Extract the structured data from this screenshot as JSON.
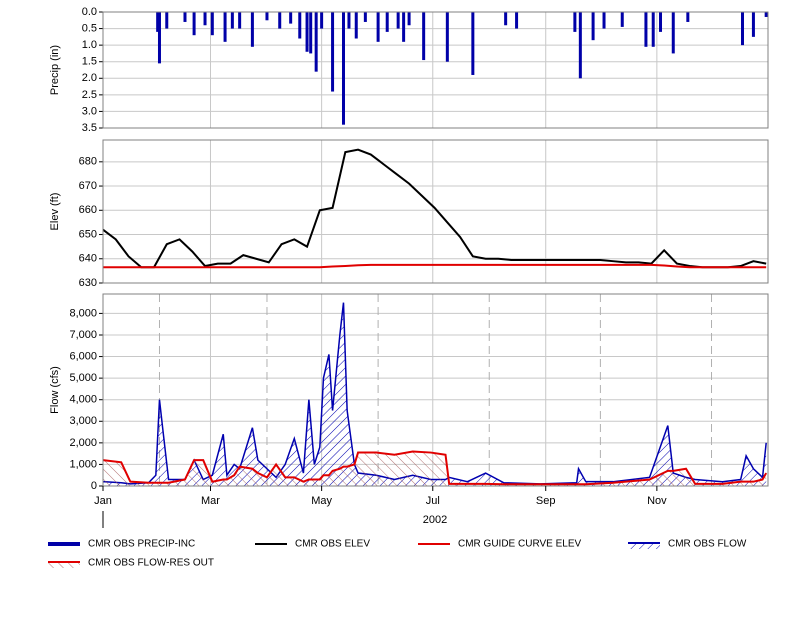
{
  "chart_data": [
    {
      "type": "bar",
      "ylabel": "Precip (in)",
      "y_inverted": true,
      "color": "#0000a8",
      "ylim": [
        0,
        3.5
      ],
      "yticks": [
        {
          "value": 0,
          "label": "0.0"
        },
        0.5,
        {
          "value": 1,
          "label": "1.0"
        },
        1.5,
        {
          "value": 2,
          "label": "2.0"
        },
        2.5,
        {
          "value": 3,
          "label": "3.0"
        },
        3.5
      ],
      "series": [
        {
          "name": "CMR OBS PRECIP-INC",
          "color": "#0000a8",
          "x": [
            30,
            31,
            35,
            45,
            50,
            56,
            60,
            67,
            71,
            75,
            82,
            90,
            97,
            103,
            108,
            112,
            114,
            117,
            120,
            126,
            132,
            135,
            139,
            144,
            151,
            156,
            162,
            165,
            168,
            176,
            189,
            203,
            221,
            227,
            259,
            262,
            269,
            275,
            285,
            298,
            302,
            306,
            313,
            321,
            351,
            357,
            364
          ],
          "values": [
            0.6,
            1.55,
            0.5,
            0.3,
            0.7,
            0.4,
            0.7,
            0.9,
            0.5,
            0.5,
            1.05,
            0.25,
            0.5,
            0.35,
            0.8,
            1.2,
            1.25,
            1.8,
            0.5,
            2.4,
            3.4,
            0.5,
            0.8,
            0.3,
            0.9,
            0.6,
            0.5,
            0.9,
            0.4,
            1.45,
            1.5,
            1.9,
            0.4,
            0.5,
            0.6,
            2.0,
            0.85,
            0.5,
            0.45,
            1.05,
            1.05,
            0.6,
            1.25,
            0.3,
            1.0,
            0.75,
            0.15
          ]
        }
      ]
    },
    {
      "type": "line",
      "ylabel": "Elev (ft)",
      "ylim": [
        630,
        689
      ],
      "yticks": [
        630,
        640,
        650,
        660,
        670,
        680
      ],
      "x": [
        0,
        7,
        14,
        21,
        28,
        35,
        42,
        49,
        56,
        63,
        70,
        77,
        84,
        91,
        98,
        105,
        112,
        119,
        126,
        133,
        140,
        147,
        154,
        161,
        168,
        175,
        182,
        189,
        196,
        203,
        210,
        217,
        224,
        231,
        238,
        245,
        252,
        259,
        266,
        273,
        280,
        287,
        294,
        301,
        308,
        315,
        322,
        329,
        336,
        343,
        350,
        357,
        364
      ],
      "series": [
        {
          "name": "CMR OBS ELEV",
          "color": "#000000",
          "values": [
            652,
            648,
            641,
            636.5,
            636.5,
            646,
            648,
            643,
            637,
            638,
            638,
            641.5,
            640,
            638.5,
            646,
            648,
            645,
            660,
            661,
            684,
            685,
            683,
            679,
            675,
            671,
            666,
            661,
            655,
            649,
            641,
            640,
            640,
            639.5,
            639.5,
            639.5,
            639.5,
            639.5,
            639.5,
            639.5,
            639.5,
            639,
            638.5,
            638.5,
            638,
            643.5,
            638,
            637,
            636.5,
            636.5,
            636.5,
            637,
            639,
            638
          ]
        },
        {
          "name": "CMR GUIDE CURVE ELEV",
          "color": "#e00000",
          "values": [
            636.5,
            636.5,
            636.5,
            636.5,
            636.5,
            636.5,
            636.5,
            636.5,
            636.5,
            636.5,
            636.5,
            636.5,
            636.5,
            636.5,
            636.5,
            636.5,
            636.5,
            636.5,
            636.8,
            637,
            637.3,
            637.5,
            637.5,
            637.5,
            637.5,
            637.5,
            637.5,
            637.5,
            637.5,
            637.5,
            637.5,
            637.5,
            637.5,
            637.5,
            637.5,
            637.5,
            637.5,
            637.5,
            637.5,
            637.5,
            637.5,
            637.5,
            637.5,
            637.5,
            637.2,
            636.8,
            636.5,
            636.5,
            636.5,
            636.5,
            636.5,
            636.5,
            636.5
          ]
        }
      ]
    },
    {
      "type": "line",
      "ylabel": "Flow (cfs)",
      "hatch": true,
      "ylim": [
        0,
        8900
      ],
      "yticks": [
        0,
        {
          "value": 1000,
          "label": "1,000"
        },
        {
          "value": 2000,
          "label": "2,000"
        },
        {
          "value": 3000,
          "label": "3,000"
        },
        {
          "value": 4000,
          "label": "4,000"
        },
        {
          "value": 5000,
          "label": "5,000"
        },
        {
          "value": 6000,
          "label": "6,000"
        },
        {
          "value": 7000,
          "label": "7,000"
        },
        {
          "value": 8000,
          "label": "8,000"
        }
      ],
      "xlim": [
        0,
        365
      ],
      "xlabel": "2002",
      "xticks": [
        {
          "value": 0,
          "label": "Jan"
        },
        {
          "value": 59,
          "label": "Mar"
        },
        {
          "value": 120,
          "label": "May"
        },
        {
          "value": 181,
          "label": "Jul"
        },
        {
          "value": 243,
          "label": "Sep"
        },
        {
          "value": 304,
          "label": "Nov"
        }
      ],
      "xminor": [
        31,
        90,
        151,
        212,
        273,
        334
      ],
      "x": [
        0,
        10,
        15,
        25,
        29,
        31,
        33,
        36,
        45,
        50,
        55,
        60,
        66,
        68,
        72,
        75,
        82,
        85,
        90,
        95,
        100,
        105,
        110,
        113,
        116,
        119,
        121,
        124,
        126,
        130,
        132,
        134,
        138,
        140,
        150,
        160,
        170,
        180,
        188,
        190,
        200,
        210,
        220,
        240,
        260,
        261,
        265,
        280,
        300,
        310,
        313,
        320,
        325,
        340,
        350,
        353,
        357,
        362,
        364
      ],
      "series": [
        {
          "name": "CMR OBS FLOW",
          "color": "#0000b0",
          "values": [
            200,
            150,
            100,
            150,
            500,
            4000,
            2500,
            300,
            300,
            1200,
            300,
            500,
            2400,
            500,
            1000,
            800,
            2700,
            1200,
            800,
            400,
            1000,
            2200,
            600,
            4000,
            1000,
            1800,
            5000,
            6100,
            3500,
            7000,
            8500,
            3500,
            1000,
            600,
            500,
            300,
            500,
            300,
            300,
            400,
            200,
            600,
            150,
            100,
            150,
            800,
            200,
            200,
            400,
            2800,
            600,
            400,
            300,
            200,
            300,
            1400,
            800,
            400,
            2000
          ]
        },
        {
          "name": "CMR OBS FLOW-RES OUT",
          "color": "#e00000",
          "values": [
            1200,
            1100,
            200,
            150,
            150,
            150,
            150,
            150,
            300,
            1200,
            1200,
            200,
            300,
            300,
            500,
            900,
            800,
            600,
            400,
            1000,
            400,
            400,
            200,
            300,
            300,
            300,
            500,
            500,
            700,
            800,
            900,
            900,
            1000,
            1550,
            1550,
            1450,
            1600,
            1550,
            1450,
            100,
            100,
            100,
            80,
            80,
            80,
            80,
            80,
            150,
            300,
            700,
            700,
            800,
            100,
            100,
            200,
            200,
            200,
            300,
            600
          ]
        }
      ]
    }
  ]
}
